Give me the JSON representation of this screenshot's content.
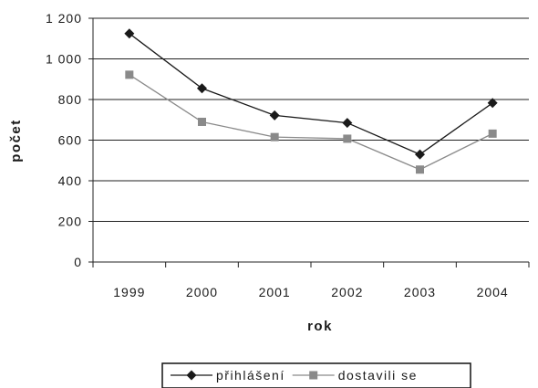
{
  "chart_data": {
    "type": "line",
    "categories": [
      "1999",
      "2000",
      "2001",
      "2002",
      "2003",
      "2004"
    ],
    "series": [
      {
        "name": "přihlášení",
        "values": [
          1125,
          855,
          722,
          685,
          530,
          783
        ],
        "color": "#1a1a1a",
        "marker": "diamond"
      },
      {
        "name": "dostavili se",
        "values": [
          922,
          690,
          615,
          607,
          455,
          632
        ],
        "color": "#8a8a8a",
        "marker": "square"
      }
    ],
    "xlabel": "rok",
    "ylabel": "počet",
    "ylim": [
      0,
      1200
    ],
    "yticks": [
      0,
      200,
      400,
      600,
      800,
      1000,
      1200
    ],
    "ytick_labels": [
      "0",
      "200",
      "400",
      "600",
      "800",
      "1 000",
      "1 200"
    ],
    "grid": true,
    "legend": "bottom"
  }
}
